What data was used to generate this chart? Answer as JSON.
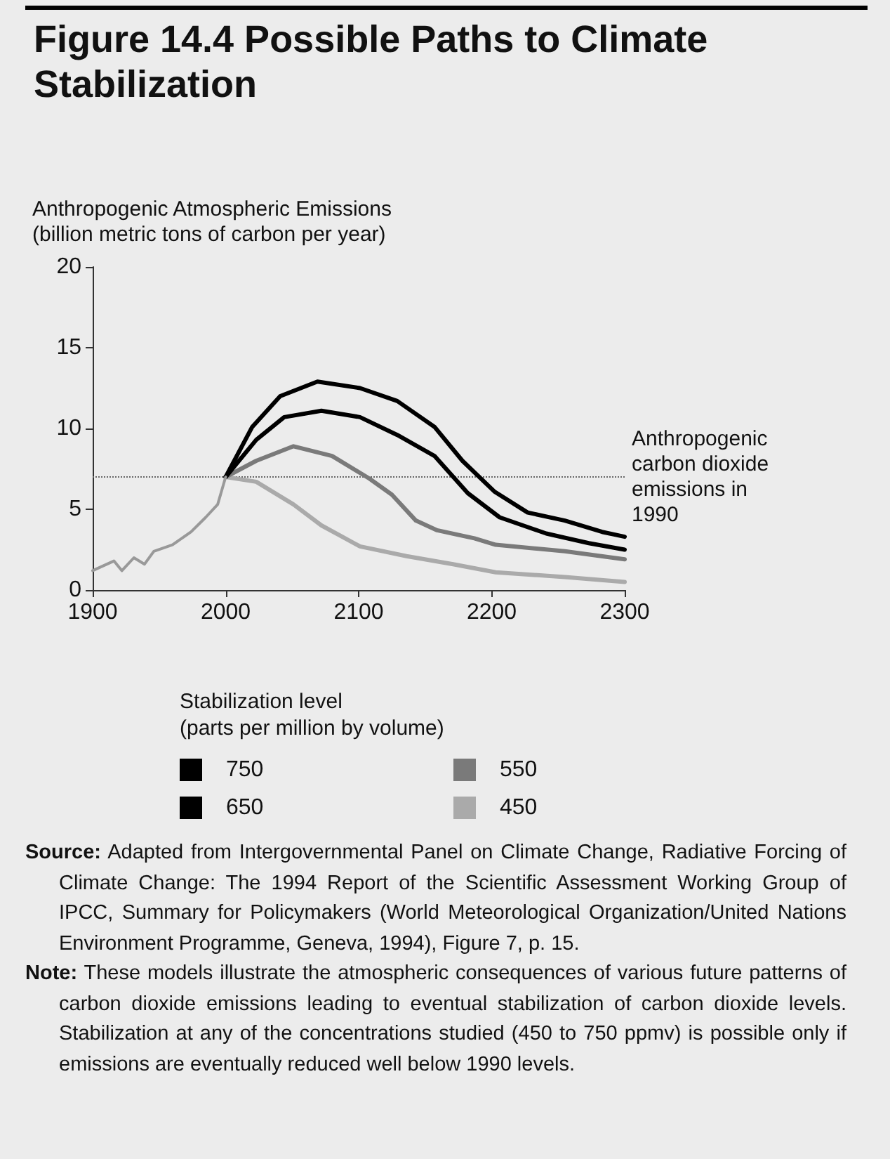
{
  "chart_data": {
    "type": "line",
    "title": "Figure 14.4  Possible Paths to Climate Stabilization",
    "ylabel": "Anthropogenic Atmospheric Emissions\n(billion metric tons of carbon per year)",
    "legend_title": "Stabilization level\n(parts per million by volume)",
    "xlim": [
      1900,
      2300
    ],
    "xticks": [
      1900,
      2000,
      2100,
      2200,
      2300
    ],
    "ylim": [
      0,
      20
    ],
    "yticks": [
      0,
      5,
      10,
      15,
      20
    ],
    "grid": false,
    "legend": "bottom",
    "marker": "none",
    "line_style": "solid",
    "series": [
      {
        "color": "#999999",
        "x": [
          1900,
          1916,
          1922,
          1931,
          1939,
          1946,
          1960,
          1974,
          1985,
          1994,
          2000
        ],
        "values": [
          1.2,
          1.8,
          1.2,
          2.0,
          1.6,
          2.4,
          2.8,
          3.6,
          4.5,
          5.3,
          7.0
        ]
      },
      {
        "name": "750",
        "color": "#000000",
        "x": [
          2000,
          2020,
          2041,
          2069,
          2101,
          2129,
          2157,
          2178,
          2202,
          2227,
          2255,
          2283,
          2300
        ],
        "values": [
          7.0,
          10.1,
          12.0,
          12.9,
          12.5,
          11.7,
          10.1,
          8.0,
          6.1,
          4.8,
          4.3,
          3.6,
          3.3
        ]
      },
      {
        "name": "650",
        "color": "#000000",
        "x": [
          2000,
          2023,
          2044,
          2072,
          2101,
          2129,
          2157,
          2182,
          2206,
          2241,
          2273,
          2300
        ],
        "values": [
          7.0,
          9.3,
          10.7,
          11.1,
          10.7,
          9.6,
          8.3,
          6.0,
          4.5,
          3.5,
          2.9,
          2.5
        ]
      },
      {
        "name": "550",
        "color": "#7a7a7a",
        "x": [
          2000,
          2023,
          2051,
          2080,
          2108,
          2125,
          2143,
          2159,
          2187,
          2203,
          2255,
          2300
        ],
        "values": [
          7.0,
          8.0,
          8.9,
          8.3,
          6.9,
          5.9,
          4.3,
          3.7,
          3.2,
          2.8,
          2.4,
          1.9
        ]
      },
      {
        "name": "450",
        "color": "#aaaaaa",
        "x": [
          2000,
          2023,
          2051,
          2072,
          2101,
          2136,
          2171,
          2203,
          2255,
          2300
        ],
        "values": [
          7.0,
          6.7,
          5.3,
          4.0,
          2.7,
          2.1,
          1.6,
          1.1,
          0.8,
          0.5
        ]
      }
    ],
    "ref_lines": [
      {
        "axis": "y",
        "value": 7,
        "label": "Anthropogenic carbon dioxide emissions in 1990",
        "color": "#666666",
        "line_style": "dotted"
      }
    ],
    "annotations": [
      "Source: Adapted from Intergovernmental Panel on Climate Change, Radiative Forcing of Climate Change: The 1994 Report of the Scientific Assessment Working Group of IPCC, Summary for Policymakers (World Meteorological Organization/United Nations Environment Programme, Geneva, 1994), Figure 7, p. 15.",
      "Note: These models illustrate the atmospheric consequences of various future patterns of carbon dioxide emissions leading to eventual stabilization of carbon dioxide levels. Stabilization at any of the concentrations studied (450 to 750 ppmv) is possible only if emissions are eventually reduced well below 1990 levels."
    ]
  }
}
